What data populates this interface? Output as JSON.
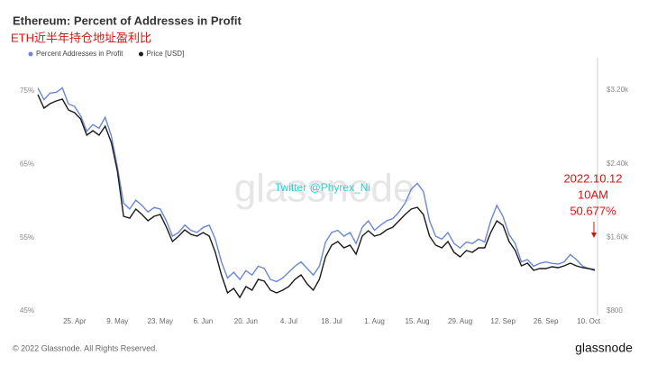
{
  "chart_data": {
    "type": "line",
    "title": "Ethereum: Percent of Addresses in Profit",
    "subtitle": "ETH近半年持仓地址盈利比",
    "x": [
      "13. Apr",
      "15. Apr",
      "17. Apr",
      "19. Apr",
      "21. Apr",
      "23. Apr",
      "25. Apr",
      "27. Apr",
      "29. Apr",
      "1. May",
      "3. May",
      "5. May",
      "7. May",
      "9. May",
      "11. May",
      "13. May",
      "15. May",
      "17. May",
      "19. May",
      "21. May",
      "23. May",
      "25. May",
      "27. May",
      "29. May",
      "31. May",
      "2. Jun",
      "4. Jun",
      "6. Jun",
      "8. Jun",
      "10. Jun",
      "12. Jun",
      "14. Jun",
      "16. Jun",
      "18. Jun",
      "20. Jun",
      "22. Jun",
      "24. Jun",
      "26. Jun",
      "28. Jun",
      "30. Jun",
      "2. Jul",
      "4. Jul",
      "6. Jul",
      "8. Jul",
      "10. Jul",
      "12. Jul",
      "14. Jul",
      "16. Jul",
      "18. Jul",
      "20. Jul",
      "22. Jul",
      "24. Jul",
      "26. Jul",
      "28. Jul",
      "30. Jul",
      "1. Aug",
      "3. Aug",
      "5. Aug",
      "7. Aug",
      "9. Aug",
      "11. Aug",
      "13. Aug",
      "15. Aug",
      "17. Aug",
      "19. Aug",
      "21. Aug",
      "23. Aug",
      "25. Aug",
      "27. Aug",
      "29. Aug",
      "31. Aug",
      "2. Sep",
      "4. Sep",
      "6. Sep",
      "8. Sep",
      "10. Sep",
      "12. Sep",
      "14. Sep",
      "16. Sep",
      "18. Sep",
      "20. Sep",
      "22. Sep",
      "24. Sep",
      "26. Sep",
      "28. Sep",
      "30. Sep",
      "2. Oct",
      "4. Oct",
      "6. Oct",
      "8. Oct",
      "10. Oct",
      "12. Oct"
    ],
    "xticks": [
      "25. Apr",
      "9. May",
      "23. May",
      "6. Jun",
      "20. Jun",
      "4. Jul",
      "18. Jul",
      "1. Aug",
      "15. Aug",
      "29. Aug",
      "12. Sep",
      "26. Sep",
      "10. Oct"
    ],
    "series": [
      {
        "name": "Percent Addresses in Profit",
        "color": "#6a86d8",
        "values": [
          75.4,
          73.8,
          74.7,
          74.8,
          75.4,
          73.2,
          72.9,
          71.6,
          69.5,
          70.4,
          69.9,
          71.4,
          68.9,
          64.6,
          59.7,
          58.9,
          60.1,
          59.4,
          58.5,
          59.1,
          58.9,
          57.3,
          55.2,
          55.7,
          56.7,
          56.0,
          55.7,
          56.4,
          56.7,
          54.8,
          51.7,
          49.5,
          50.3,
          49.3,
          50.5,
          49.9,
          51.1,
          50.8,
          49.3,
          49.0,
          49.5,
          50.3,
          51.1,
          51.7,
          50.8,
          49.9,
          51.1,
          54.4,
          55.7,
          56.0,
          55.2,
          55.7,
          54.2,
          56.4,
          57.3,
          56.0,
          56.7,
          57.3,
          57.6,
          58.5,
          59.7,
          61.6,
          62.4,
          61.3,
          57.3,
          55.2,
          54.8,
          55.7,
          54.2,
          53.6,
          54.4,
          54.2,
          54.8,
          54.4,
          57.3,
          59.4,
          57.9,
          55.4,
          54.2,
          51.7,
          52.0,
          51.1,
          51.5,
          51.7,
          51.5,
          51.4,
          51.7,
          52.7,
          52.0,
          51.1,
          50.8,
          50.7
        ]
      },
      {
        "name": "Price [USD]",
        "color": "#1a1a1a",
        "axis": "y2",
        "values": [
          3152,
          3005,
          3054,
          3083,
          3103,
          2985,
          2956,
          2887,
          2711,
          2760,
          2711,
          2809,
          2633,
          2319,
          1829,
          1809,
          1907,
          1849,
          1780,
          1829,
          1849,
          1711,
          1555,
          1613,
          1682,
          1633,
          1613,
          1653,
          1613,
          1437,
          1192,
          996,
          1045,
          947,
          1065,
          1025,
          1143,
          1123,
          1025,
          996,
          1025,
          1065,
          1143,
          1192,
          1094,
          1025,
          1143,
          1388,
          1515,
          1555,
          1486,
          1515,
          1417,
          1613,
          1672,
          1613,
          1633,
          1682,
          1711,
          1780,
          1849,
          1907,
          1927,
          1849,
          1613,
          1515,
          1486,
          1555,
          1437,
          1388,
          1457,
          1437,
          1486,
          1486,
          1653,
          1780,
          1731,
          1555,
          1457,
          1290,
          1319,
          1241,
          1261,
          1261,
          1280,
          1270,
          1290,
          1319,
          1290,
          1270,
          1261,
          1241
        ]
      }
    ],
    "ylim": [
      44.4,
      79.4
    ],
    "yticks": [
      {
        "value": 45,
        "label": "45%"
      },
      {
        "value": 55,
        "label": "55%"
      },
      {
        "value": 65,
        "label": "65%"
      },
      {
        "value": 75,
        "label": "75%"
      }
    ],
    "y2lim": [
      751,
      3544
    ],
    "y2ticks": [
      {
        "value": 800,
        "label": "$800"
      },
      {
        "value": 1600,
        "label": "$1.60k"
      },
      {
        "value": 2400,
        "label": "$2.40k"
      },
      {
        "value": 3200,
        "label": "$3.20k"
      }
    ],
    "grid": false,
    "legend": "top-left",
    "annotation": [
      "2022.10.12",
      "10AM",
      "50.677%"
    ],
    "watermark": "glassnode",
    "twitter": "Twitter @Phyrex_Ni"
  },
  "footer": "© 2022 Glassnode. All Rights Reserved.",
  "logo": "glassnode"
}
